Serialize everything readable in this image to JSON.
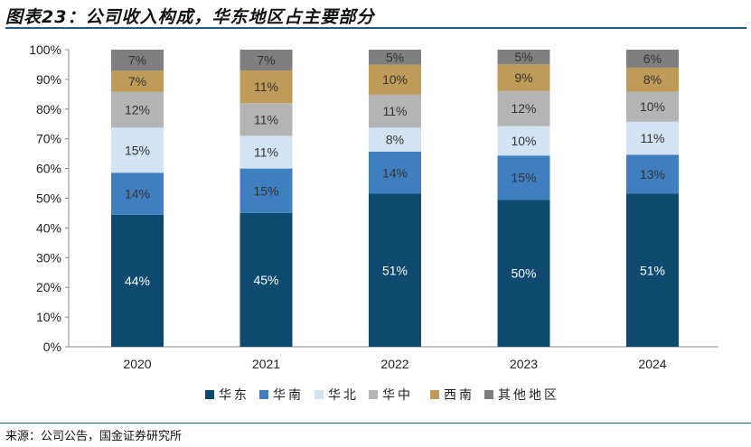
{
  "title": "图表23：公司收入构成，华东地区占主要部分",
  "source": "来源：公司公告，国金证券研究所",
  "chart_data": {
    "type": "bar",
    "stacked": true,
    "title": "图表23：公司收入构成，华东地区占主要部分",
    "xlabel": "",
    "ylabel": "",
    "ylim": [
      0,
      100
    ],
    "yticks": [
      "0%",
      "10%",
      "20%",
      "30%",
      "40%",
      "50%",
      "60%",
      "70%",
      "80%",
      "90%",
      "100%"
    ],
    "categories": [
      "2020",
      "2021",
      "2022",
      "2023",
      "2024"
    ],
    "legend_position": "bottom",
    "series": [
      {
        "name": "华东",
        "color": "#0e4a70",
        "label_color": "#ffffff",
        "values": [
          44,
          45,
          51,
          50,
          51
        ]
      },
      {
        "name": "华南",
        "color": "#3f7fbf",
        "label_color": "#333333",
        "values": [
          14,
          15,
          14,
          15,
          13
        ]
      },
      {
        "name": "华北",
        "color": "#d2e3f3",
        "label_color": "#333333",
        "values": [
          15,
          11,
          8,
          10,
          11
        ]
      },
      {
        "name": "华中",
        "color": "#b4b4b4",
        "label_color": "#333333",
        "values": [
          12,
          11,
          11,
          12,
          10
        ]
      },
      {
        "name": "西南",
        "color": "#bf9b58",
        "label_color": "#333333",
        "values": [
          7,
          11,
          10,
          9,
          8
        ]
      },
      {
        "name": "其他地区",
        "color": "#7f7f7f",
        "label_color": "#333333",
        "values": [
          7,
          7,
          5,
          5,
          6
        ]
      }
    ]
  }
}
